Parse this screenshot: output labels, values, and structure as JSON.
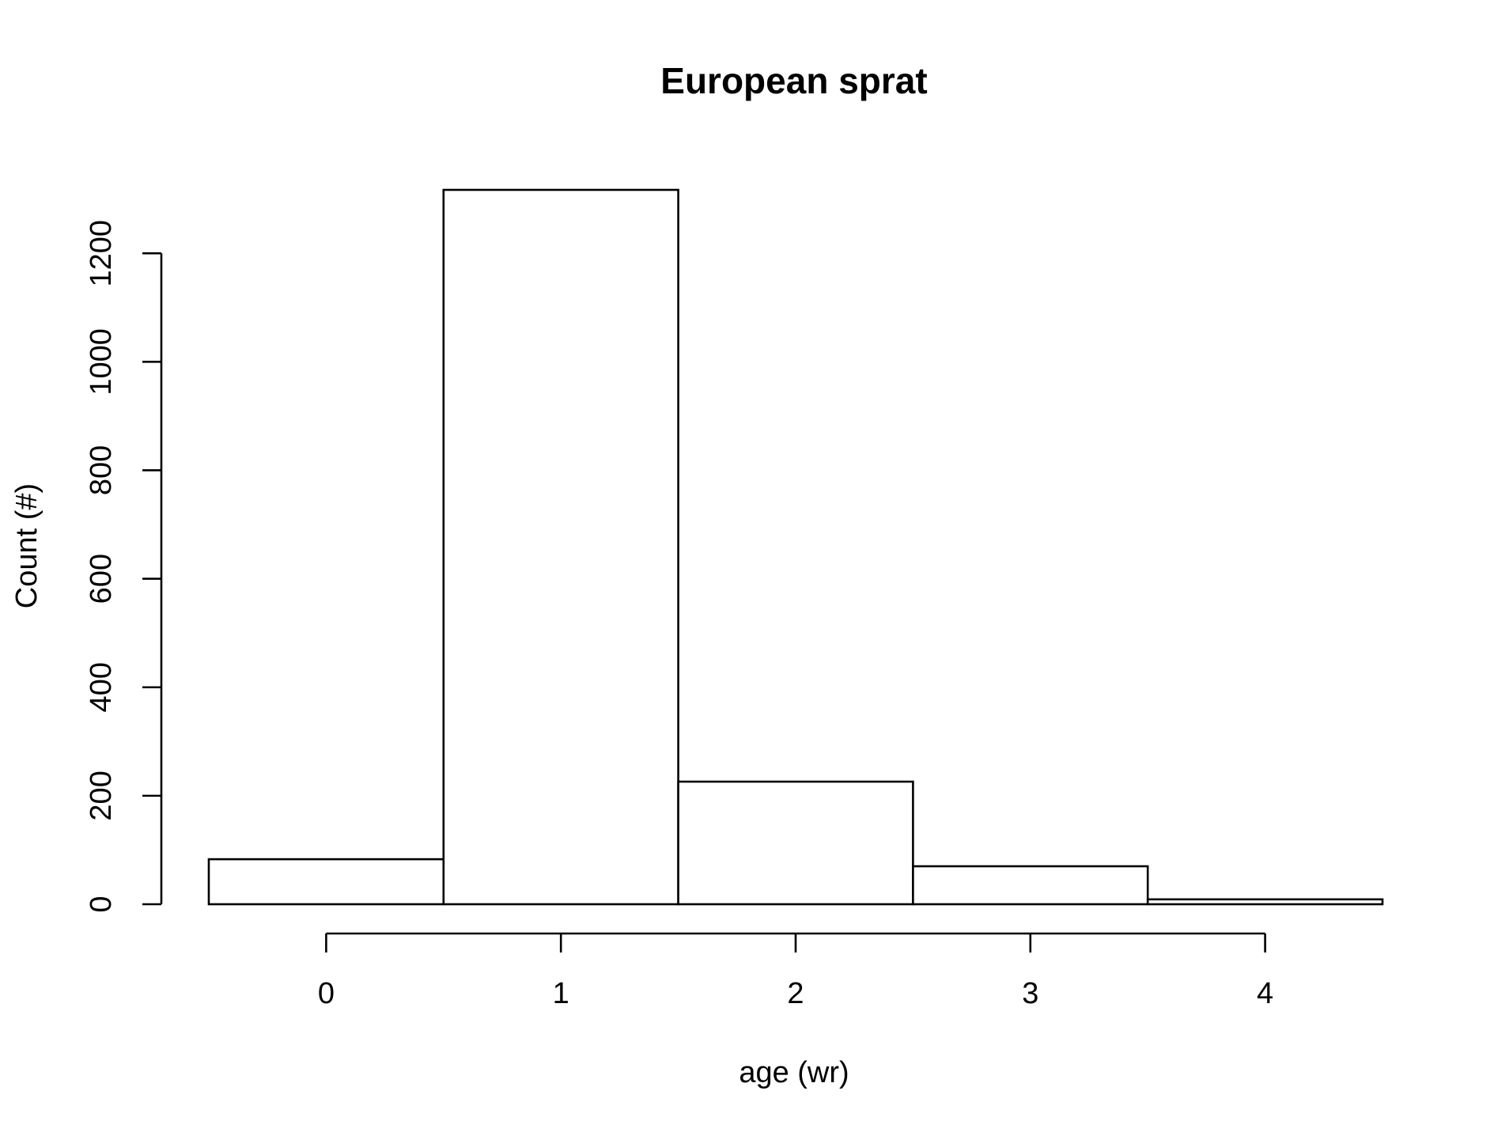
{
  "chart_data": {
    "type": "bar",
    "title": "European sprat",
    "xlabel": "age (wr)",
    "ylabel": "Count (#)",
    "bins": [
      {
        "from": -0.5,
        "to": 0.5,
        "count": 83
      },
      {
        "from": 0.5,
        "to": 1.5,
        "count": 1317
      },
      {
        "from": 1.5,
        "to": 2.5,
        "count": 226
      },
      {
        "from": 2.5,
        "to": 3.5,
        "count": 70
      },
      {
        "from": 3.5,
        "to": 4.5,
        "count": 9
      }
    ],
    "xticks": [
      "0",
      "1",
      "2",
      "3",
      "4"
    ],
    "yticks": [
      "0",
      "200",
      "400",
      "600",
      "800",
      "1000",
      "1200"
    ],
    "xlim": [
      -0.5,
      4.5
    ],
    "ylim": [
      0,
      1317
    ],
    "grid": false,
    "legend": "none",
    "bar_fill": "#ffffff",
    "bar_stroke": "#000000"
  }
}
